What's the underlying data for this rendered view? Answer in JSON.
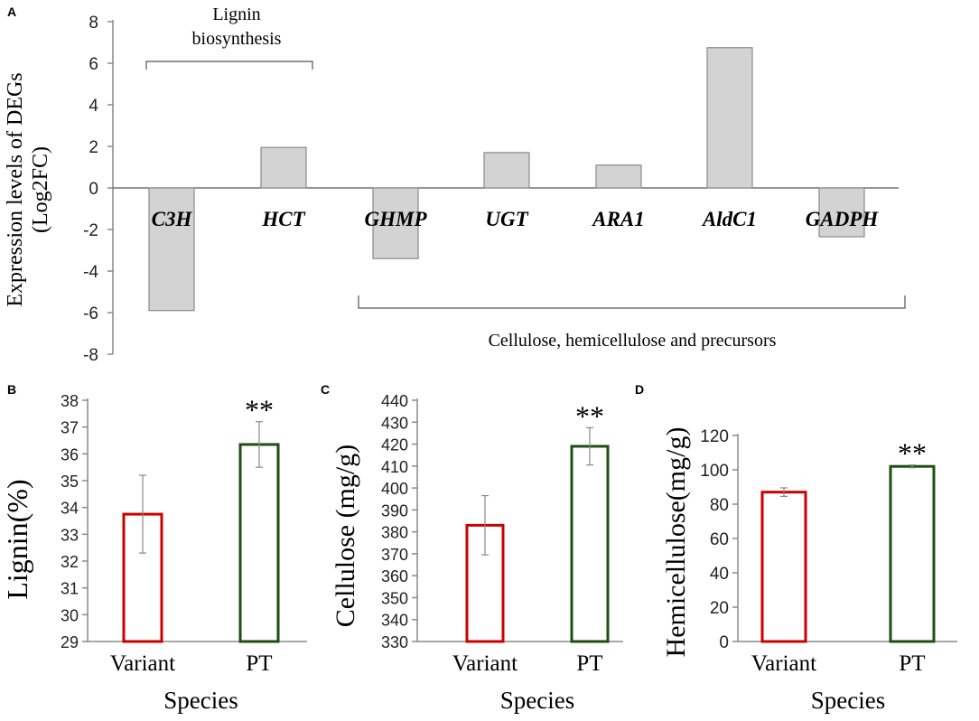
{
  "chart_data": [
    {
      "panel": "A",
      "type": "bar",
      "ylabel_line1": "Expression levels of DEGs",
      "ylabel_line2": "(Log2FC)",
      "ylim": [
        -8,
        8
      ],
      "yticks": [
        "-8",
        "-6",
        "-4",
        "-2",
        "0",
        "2",
        "4",
        "6",
        "8"
      ],
      "categories": [
        "C3H",
        "HCT",
        "GHMP",
        "UGT",
        "ARA1",
        "AldC1",
        "GADPH"
      ],
      "values": [
        -5.9,
        1.95,
        -3.4,
        1.7,
        1.1,
        6.75,
        -2.35
      ],
      "bar_color": "#d3d3d3",
      "group_lignin_line1": "Lignin",
      "group_lignin_line2": "biosynthesis",
      "group_cellulose": "Cellulose, hemicellulose and precursors"
    },
    {
      "panel": "B",
      "type": "bar",
      "ylabel": "Lignin(%)",
      "xlabel": "Species",
      "ylim": [
        29,
        38
      ],
      "yticks": [
        "29",
        "30",
        "31",
        "32",
        "33",
        "34",
        "35",
        "36",
        "37",
        "38"
      ],
      "categories": [
        "Variant",
        "PT"
      ],
      "values": [
        33.75,
        36.35
      ],
      "errors": [
        1.45,
        0.85
      ],
      "colors": [
        "#cc0000",
        "#1f4e13"
      ],
      "significance": "**"
    },
    {
      "panel": "C",
      "type": "bar",
      "ylabel": "Cellulose (mg/g)",
      "xlabel": "Species",
      "ylim": [
        330,
        440
      ],
      "yticks": [
        "330",
        "340",
        "350",
        "360",
        "370",
        "380",
        "390",
        "400",
        "410",
        "420",
        "430",
        "440"
      ],
      "categories": [
        "Variant",
        "PT"
      ],
      "values": [
        383,
        419
      ],
      "errors": [
        13.5,
        8.5
      ],
      "colors": [
        "#cc0000",
        "#1f4e13"
      ],
      "significance": "**"
    },
    {
      "panel": "D",
      "type": "bar",
      "ylabel": "Hemicellulose(mg/g)",
      "xlabel": "Species",
      "ylim": [
        0,
        120
      ],
      "yticks": [
        "0",
        "20",
        "40",
        "60",
        "80",
        "100",
        "120"
      ],
      "categories": [
        "Variant",
        "PT"
      ],
      "values": [
        87,
        102
      ],
      "errors": [
        2.5,
        0.8
      ],
      "colors": [
        "#cc0000",
        "#1f4e13"
      ],
      "significance": "**"
    }
  ]
}
